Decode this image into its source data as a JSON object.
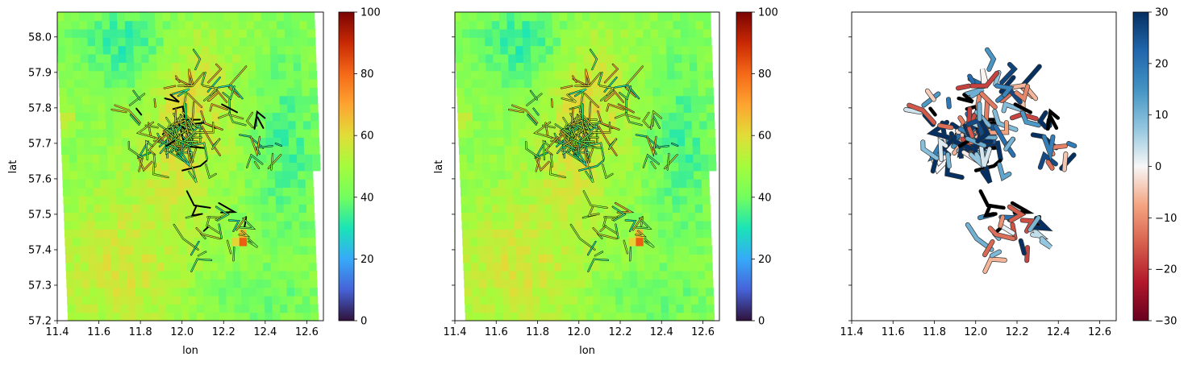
{
  "chart_data": [
    {
      "type": "heatmap",
      "xlabel": "lon",
      "ylabel": "lat",
      "xlim": [
        11.4,
        12.68
      ],
      "ylim": [
        57.2,
        58.07
      ],
      "xticks": [
        "11.4",
        "11.6",
        "11.8",
        "12.0",
        "12.2",
        "12.4",
        "12.6"
      ],
      "yticks": [
        "57.2",
        "57.3",
        "57.4",
        "57.5",
        "57.6",
        "57.7",
        "57.8",
        "57.9",
        "58.0"
      ],
      "colorbar": {
        "min": 0,
        "max": 100,
        "ticks": [
          "0",
          "20",
          "40",
          "60",
          "80",
          "100"
        ],
        "colormap": "turbo"
      },
      "overlay": "segment network colored by value, black segments where out of range"
    },
    {
      "type": "heatmap",
      "xlabel": "lon",
      "ylabel": "lat",
      "xlim": [
        11.4,
        12.68
      ],
      "ylim": [
        57.2,
        58.07
      ],
      "xticks": [
        "11.4",
        "11.6",
        "11.8",
        "12.0",
        "12.2",
        "12.4",
        "12.6"
      ],
      "yticks": [],
      "colorbar": {
        "min": 0,
        "max": 100,
        "ticks": [
          "0",
          "20",
          "40",
          "60",
          "80",
          "100"
        ],
        "colormap": "turbo"
      },
      "overlay": "segment network colored by value"
    },
    {
      "type": "scatter",
      "xlabel": "",
      "ylabel": "",
      "xlim": [
        11.4,
        12.68
      ],
      "ylim": [
        57.2,
        58.07
      ],
      "xticks": [
        "11.4",
        "11.6",
        "11.8",
        "12.0",
        "12.2",
        "12.4",
        "12.6"
      ],
      "yticks": [],
      "colorbar": {
        "min": -30,
        "max": 30,
        "ticks": [
          "−30",
          "−20",
          "−10",
          "0",
          "10",
          "20",
          "30"
        ],
        "colormap": "RdBu"
      },
      "overlay": "segment network colored by difference, black where missing"
    }
  ],
  "colors": {
    "background": "#ffffff",
    "missing_segment": "#000000"
  }
}
